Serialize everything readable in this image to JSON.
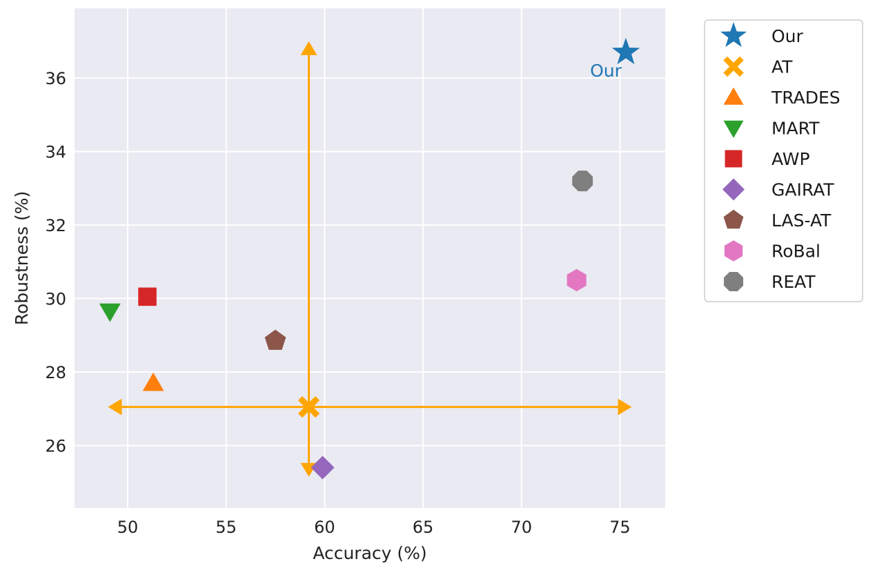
{
  "chart_data": {
    "type": "scatter",
    "xlabel": "Accuracy (%)",
    "ylabel": "Robustness (%)",
    "xlim": [
      47.3,
      77.3
    ],
    "ylim": [
      24.3,
      37.9
    ],
    "xticks": [
      50,
      55,
      60,
      65,
      70,
      75
    ],
    "yticks": [
      26,
      28,
      30,
      32,
      34,
      36
    ],
    "grid": true,
    "legend_position": "outside-right-top",
    "points": [
      {
        "name": "Our",
        "x": 75.3,
        "y": 36.7,
        "marker": "star",
        "color": "#1f77b4"
      },
      {
        "name": "AT",
        "x": 59.2,
        "y": 27.05,
        "marker": "x",
        "color": "#ffa500"
      },
      {
        "name": "TRADES",
        "x": 51.3,
        "y": 27.7,
        "marker": "triangle-up",
        "color": "#ff7f0e"
      },
      {
        "name": "MART",
        "x": 49.1,
        "y": 29.65,
        "marker": "triangle-down",
        "color": "#2ca02c"
      },
      {
        "name": "AWP",
        "x": 51.0,
        "y": 30.05,
        "marker": "square",
        "color": "#d62728"
      },
      {
        "name": "GAIRAT",
        "x": 59.9,
        "y": 25.4,
        "marker": "diamond",
        "color": "#9467bd"
      },
      {
        "name": "LAS-AT",
        "x": 57.5,
        "y": 28.85,
        "marker": "pentagon",
        "color": "#8c564b"
      },
      {
        "name": "RoBal",
        "x": 72.8,
        "y": 30.5,
        "marker": "hexagon",
        "color": "#e377c2"
      },
      {
        "name": "REAT",
        "x": 73.1,
        "y": 33.2,
        "marker": "octagon",
        "color": "#7f7f7f"
      }
    ],
    "annotations": [
      {
        "text": "Our",
        "x": 75.3,
        "y": 36.7,
        "color": "#1f77b4"
      }
    ],
    "arrows": {
      "color": "#ffa500",
      "origin": {
        "x": 59.2,
        "y": 27.05
      },
      "horizontal": [
        49.0,
        75.6
      ],
      "vertical": [
        25.15,
        37.0
      ]
    }
  },
  "colors": {
    "plot_background": "#eaeaf2",
    "grid": "#ffffff",
    "arrow": "#ffa500"
  }
}
